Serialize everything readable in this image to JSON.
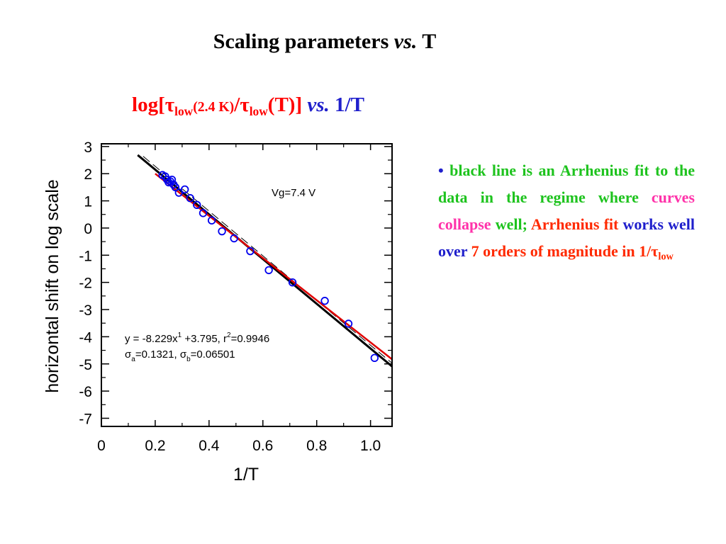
{
  "slide": {
    "title_main": "Scaling parameters ",
    "title_italic": "vs.",
    "title_end": " T"
  },
  "chart_title": {
    "log_prefix": "log[",
    "tau1": "τ",
    "low1": "low",
    "temp1": "(2.4 K)",
    "slash": "/",
    "tau2": "τ",
    "low2": "low",
    "temp2": "(T)]",
    "vs": " vs.",
    "inv_t": " 1/T"
  },
  "bullet": {
    "dot": "• ",
    "green_text": "black line is an Arrhenius fit to the data in the regime where",
    "magenta_text": "curves collapse",
    "green_well": "well;",
    "red_fit": "Arrhenius fit",
    "blue_text": "works well over",
    "red_orders": "7 orders of magnitude in 1/",
    "tau": "τ",
    "low": "low"
  },
  "colors": {
    "red_fit_line": "#e00000",
    "black_fit_line": "#000000",
    "data_markers": "#0000ee"
  },
  "chart_data": {
    "type": "scatter",
    "xlabel": "1/T",
    "ylabel": "horizontal shift on log scale",
    "xlim": [
      0,
      1.08
    ],
    "ylim": [
      -7.3,
      3.1
    ],
    "x_ticks": [
      0,
      0.2,
      0.4,
      0.6,
      0.8,
      1.0
    ],
    "x_tick_labels": [
      "0",
      "0.2",
      "0.4",
      "0.6",
      "0.8",
      "1.0"
    ],
    "y_ticks": [
      3,
      2,
      1,
      0,
      -1,
      -2,
      -3,
      -4,
      -5,
      -6,
      -7
    ],
    "y_tick_labels": [
      "3",
      "2",
      "1",
      "0",
      "-1",
      "-2",
      "-3",
      "-4",
      "-5",
      "-6",
      "-7"
    ],
    "annotation_vg": "Vg=7.4 V",
    "fit_text": {
      "l1_main": "y = -8.229x",
      "l1_sup1": "1",
      "l1_mid": " +3.795, r",
      "l1_sup2": "2",
      "l1_end": "=0.9946",
      "sigma": "σ",
      "sub_a": "a",
      "l2_a": "=0.1321, ",
      "sub_b": "b",
      "l2_b": "=0.06501"
    },
    "series": [
      {
        "marker": "open-circle",
        "x": [
          0.227,
          0.237,
          0.244,
          0.25,
          0.256,
          0.262,
          0.268,
          0.275,
          0.288,
          0.31,
          0.33,
          0.355,
          0.378,
          0.41,
          0.448,
          0.493,
          0.553,
          0.622,
          0.71,
          0.83,
          0.918,
          1.015
        ],
        "y": [
          1.95,
          1.9,
          1.78,
          1.68,
          1.72,
          1.78,
          1.6,
          1.5,
          1.3,
          1.42,
          1.1,
          0.85,
          0.55,
          0.28,
          -0.12,
          -0.38,
          -0.85,
          -1.55,
          -2.0,
          -2.68,
          -3.52,
          -4.78
        ]
      }
    ],
    "fits": [
      {
        "name": "Arrhenius fit",
        "color": "black",
        "slope": -8.229,
        "intercept": 3.795,
        "x_range": [
          0.135,
          1.08
        ]
      },
      {
        "name": "red fit",
        "color": "red",
        "x": [
          0.2,
          1.08
        ],
        "y": [
          2.0,
          -4.83
        ]
      }
    ]
  }
}
